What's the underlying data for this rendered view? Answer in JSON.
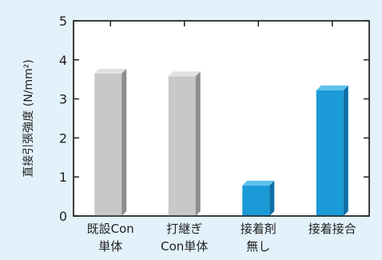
{
  "chart_data": {
    "type": "bar",
    "title": "",
    "ylabel": "直接引張強度 (N/mm²)",
    "xlabel": "",
    "ylim": [
      0,
      5
    ],
    "yticks": [
      0,
      1,
      2,
      3,
      4,
      5
    ],
    "categories": [
      [
        "既設Con",
        "単体"
      ],
      [
        "打継ぎ",
        "Con単体"
      ],
      [
        "接着剤",
        "無し"
      ],
      [
        "接着接合"
      ]
    ],
    "values": [
      3.65,
      3.58,
      0.78,
      3.22
    ],
    "bar_colors": [
      "#c8c8c8",
      "#c8c8c8",
      "#1a9ad6",
      "#1a9ad6"
    ],
    "bar_side_colors": [
      "#8e8e8e",
      "#8e8e8e",
      "#0d6fa3",
      "#0d6fa3"
    ],
    "bar_top_colors": [
      "#e2e2e2",
      "#e2e2e2",
      "#5cc0ee",
      "#5cc0ee"
    ],
    "grid": false,
    "background": "#e3f1fb",
    "plot_background": "#ffffff"
  }
}
